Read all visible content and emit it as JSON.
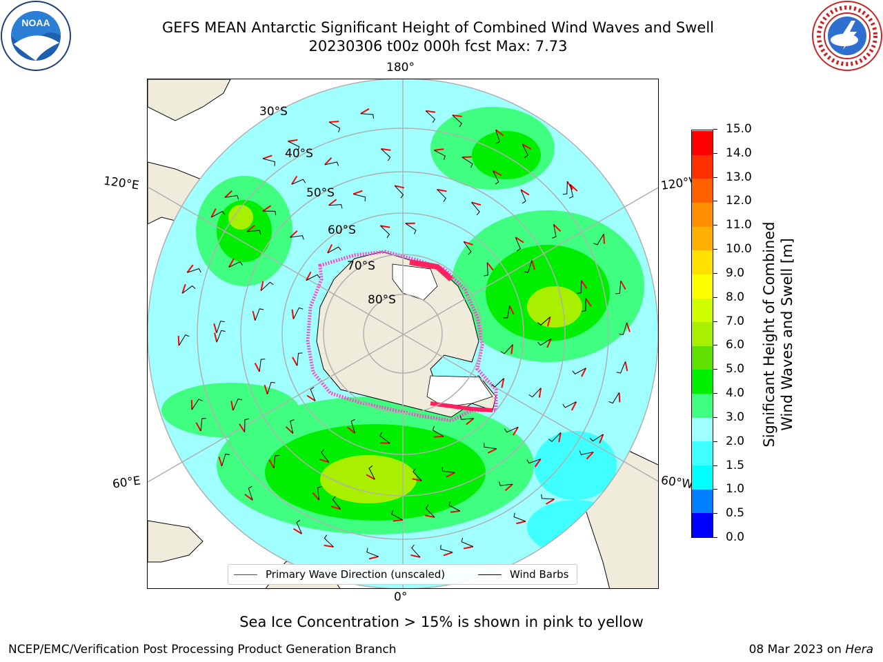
{
  "title": {
    "line1": "GEFS MEAN Antarctic Significant Height of Combined Wind Waves and Swell",
    "line2": "20230306 t00z 000h fcst   Max: 7.73"
  },
  "logos": {
    "left": "noaa-logo",
    "right": "national-weather-service-logo"
  },
  "map": {
    "projection": "south-polar-stereographic",
    "longitude_labels": {
      "top": "180°",
      "bottom": "0°",
      "left_upper": "120°E",
      "left_lower": "60°E",
      "right_upper": "120°W",
      "right_lower": "60°W"
    },
    "latitude_labels": [
      "30°S",
      "40°S",
      "50°S",
      "60°S",
      "70°S",
      "80°S"
    ],
    "colors": {
      "land": "#efecdc",
      "ice_shelf": "#ffffff",
      "sea_ice": "#ff44d0",
      "wave_dir": "#ff0000",
      "wind_barb": "#000000",
      "grid": "#b0b0b0"
    }
  },
  "legend": {
    "wave_label": "Primary Wave Direction (unscaled)",
    "barb_label": "Wind Barbs"
  },
  "colorbar": {
    "label_line1": "Significant Height of Combined",
    "label_line2": "Wind Waves and Swell [m]",
    "ticks": [
      "0.0",
      "0.5",
      "1.0",
      "1.5",
      "2.0",
      "3.0",
      "4.0",
      "5.0",
      "6.0",
      "7.0",
      "8.0",
      "9.0",
      "10.0",
      "11.0",
      "12.0",
      "13.0",
      "14.0",
      "15.0"
    ],
    "colors": [
      "#0000ff",
      "#0080ff",
      "#00ffff",
      "#40ffff",
      "#a0ffff",
      "#40ff80",
      "#00ee00",
      "#60e000",
      "#a8f000",
      "#d0ff00",
      "#ffff00",
      "#ffe000",
      "#ffb000",
      "#ff9000",
      "#ff6000",
      "#ff3000",
      "#ff0000"
    ]
  },
  "caption": "Sea Ice Concentration > 15% is shown in pink to yellow",
  "footer": {
    "left": "NCEP/EMC/Verification Post Processing Product Generation Branch",
    "right_date": "08 Mar 2023 on",
    "right_host": "Hera"
  }
}
